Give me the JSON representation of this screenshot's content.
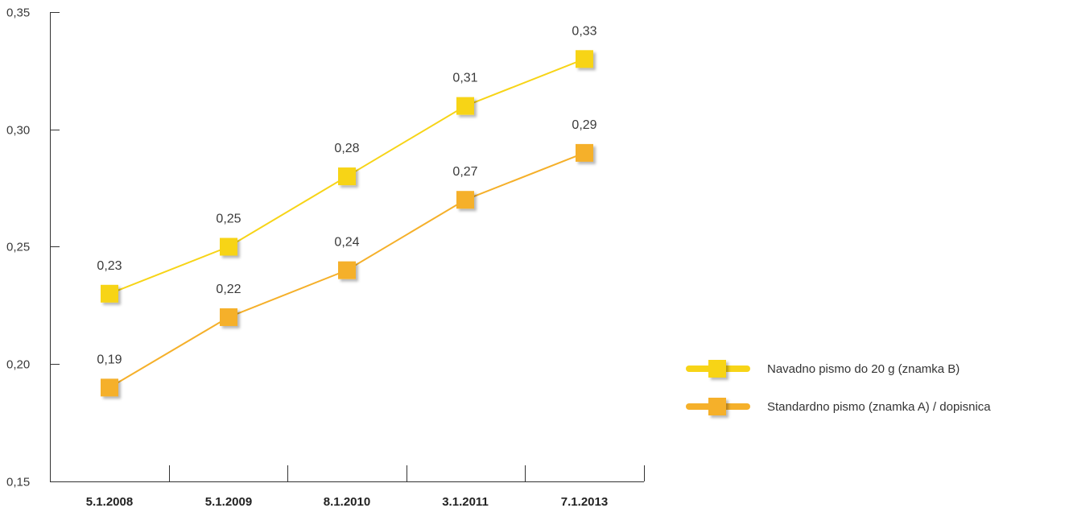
{
  "chart_data": {
    "type": "line",
    "categories": [
      "5.1.2008",
      "5.1.2009",
      "8.1.2010",
      "3.1.2011",
      "7.1.2013"
    ],
    "ylim": [
      0.15,
      0.35
    ],
    "yticks": [
      "0,15",
      "0,20",
      "0,25",
      "0,30",
      "0,35"
    ],
    "ytick_values": [
      0.15,
      0.2,
      0.25,
      0.3,
      0.35
    ],
    "series": [
      {
        "name": "Navadno pismo do 20 g (znamka B)",
        "values": [
          0.23,
          0.25,
          0.28,
          0.31,
          0.33
        ],
        "labels": [
          "0,23",
          "0,25",
          "0,28",
          "0,31",
          "0,33"
        ],
        "color": "#F7D417"
      },
      {
        "name": "Standardno pismo (znamka A) / dopisnica",
        "values": [
          0.19,
          0.22,
          0.24,
          0.27,
          0.29
        ],
        "labels": [
          "0,19",
          "0,22",
          "0,24",
          "0,27",
          "0,29"
        ],
        "color": "#F5B02A"
      }
    ],
    "grid": false,
    "legend": "right"
  }
}
